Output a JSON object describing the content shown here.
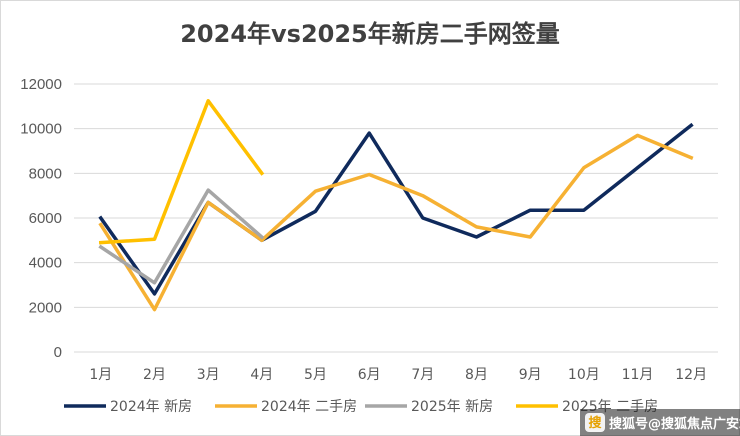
{
  "chart_data": {
    "type": "line",
    "title": "2024年vs2025年新房二手网签量",
    "xlabel": "",
    "ylabel": "",
    "categories": [
      "1月",
      "2月",
      "3月",
      "4月",
      "5月",
      "6月",
      "7月",
      "8月",
      "9月",
      "10月",
      "11月",
      "12月"
    ],
    "ylim": [
      0,
      12000
    ],
    "yticks": [
      0,
      2000,
      4000,
      6000,
      8000,
      10000,
      12000
    ],
    "grid": true,
    "legend_position": "bottom",
    "series": [
      {
        "name": "2024年 新房",
        "color": "#0f2a5c",
        "values": [
          6000,
          2600,
          6700,
          5000,
          6300,
          9800,
          6000,
          5150,
          6350,
          6350,
          8250,
          10150
        ]
      },
      {
        "name": "2024年 二手房",
        "color": "#f6b133",
        "values": [
          5700,
          1900,
          6700,
          5000,
          7200,
          7950,
          7000,
          5600,
          5150,
          8250,
          9700,
          8700
        ]
      },
      {
        "name": "2025年 新房",
        "color": "#a6a6a6",
        "values": [
          4700,
          3100,
          7250,
          5150,
          null,
          null,
          null,
          null,
          null,
          null,
          null,
          null
        ]
      },
      {
        "name": "2025年 二手房",
        "color": "#ffc000",
        "values": [
          4900,
          5050,
          11250,
          8000,
          null,
          null,
          null,
          null,
          null,
          null,
          null,
          null
        ]
      }
    ]
  },
  "watermark": {
    "text": "搜狐号@搜狐焦点广安站",
    "icon": "sohu-logo-icon"
  }
}
